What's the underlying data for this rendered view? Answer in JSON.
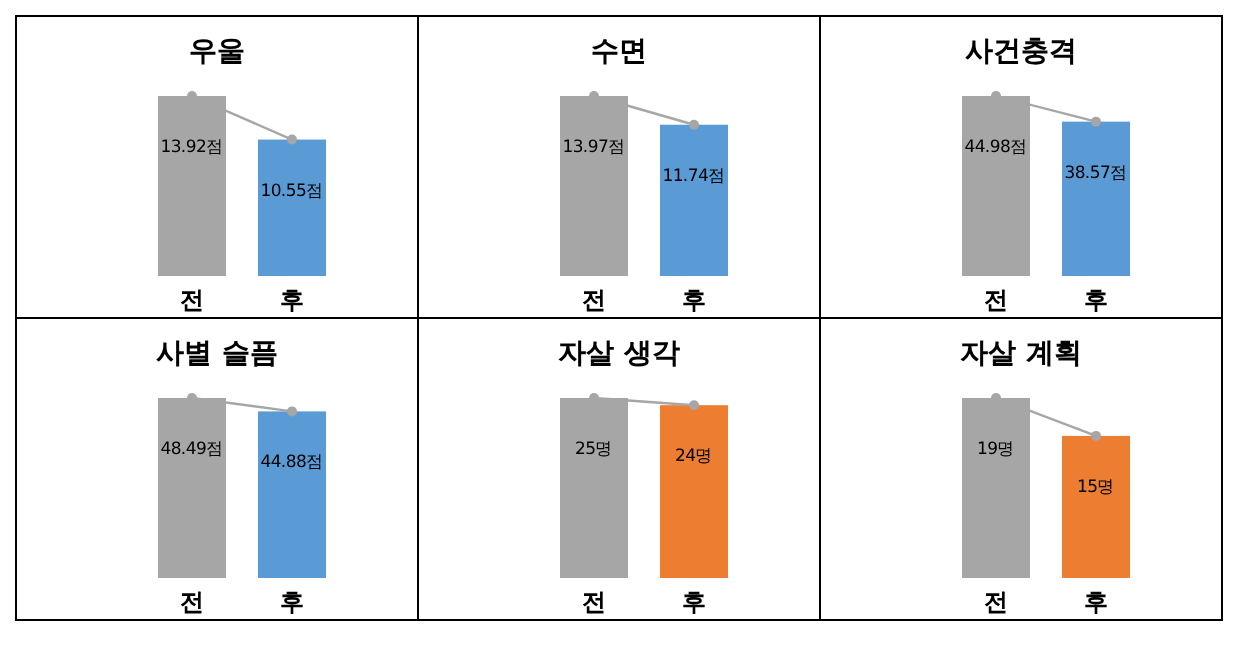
{
  "chart_data": [
    {
      "type": "bar",
      "title": "우울",
      "categories": [
        "전",
        "후"
      ],
      "marker": "circle",
      "series": [
        {
          "type": "bar",
          "colors": [
            "#a6a6a6",
            "#5b9bd5"
          ],
          "values": [
            13.92,
            10.55
          ],
          "value_labels": [
            "13.92점",
            "10.55점"
          ]
        },
        {
          "type": "line",
          "color": "#a6a6a6",
          "values": [
            13.92,
            10.55
          ]
        }
      ]
    },
    {
      "type": "bar",
      "title": "수면",
      "categories": [
        "전",
        "후"
      ],
      "marker": "circle",
      "series": [
        {
          "type": "bar",
          "colors": [
            "#a6a6a6",
            "#5b9bd5"
          ],
          "values": [
            13.97,
            11.74
          ],
          "value_labels": [
            "13.97점",
            "11.74점"
          ]
        },
        {
          "type": "line",
          "color": "#a6a6a6",
          "values": [
            13.97,
            11.74
          ]
        }
      ]
    },
    {
      "type": "bar",
      "title": "사건충격",
      "categories": [
        "전",
        "후"
      ],
      "marker": "circle",
      "series": [
        {
          "type": "bar",
          "colors": [
            "#a6a6a6",
            "#5b9bd5"
          ],
          "values": [
            44.98,
            38.57
          ],
          "value_labels": [
            "44.98점",
            "38.57점"
          ]
        },
        {
          "type": "line",
          "color": "#a6a6a6",
          "values": [
            44.98,
            38.57
          ]
        }
      ]
    },
    {
      "type": "bar",
      "title": "사별 슬픔",
      "categories": [
        "전",
        "후"
      ],
      "marker": "circle",
      "series": [
        {
          "type": "bar",
          "colors": [
            "#a6a6a6",
            "#5b9bd5"
          ],
          "values": [
            48.49,
            44.88
          ],
          "value_labels": [
            "48.49점",
            "44.88점"
          ]
        },
        {
          "type": "line",
          "color": "#a6a6a6",
          "values": [
            48.49,
            44.88
          ]
        }
      ]
    },
    {
      "type": "bar",
      "title": "자살 생각",
      "categories": [
        "전",
        "후"
      ],
      "marker": "circle",
      "series": [
        {
          "type": "bar",
          "colors": [
            "#a6a6a6",
            "#ed7d31"
          ],
          "values": [
            25,
            24
          ],
          "value_labels": [
            "25명",
            "24명"
          ]
        },
        {
          "type": "line",
          "color": "#a6a6a6",
          "values": [
            25,
            24
          ]
        }
      ]
    },
    {
      "type": "bar",
      "title": "자살 계획",
      "categories": [
        "전",
        "후"
      ],
      "marker": "circle",
      "series": [
        {
          "type": "bar",
          "colors": [
            "#a6a6a6",
            "#ed7d31"
          ],
          "values": [
            19,
            15
          ],
          "value_labels": [
            "19명",
            "15명"
          ]
        },
        {
          "type": "line",
          "color": "#a6a6a6",
          "values": [
            19,
            15
          ]
        }
      ]
    }
  ]
}
